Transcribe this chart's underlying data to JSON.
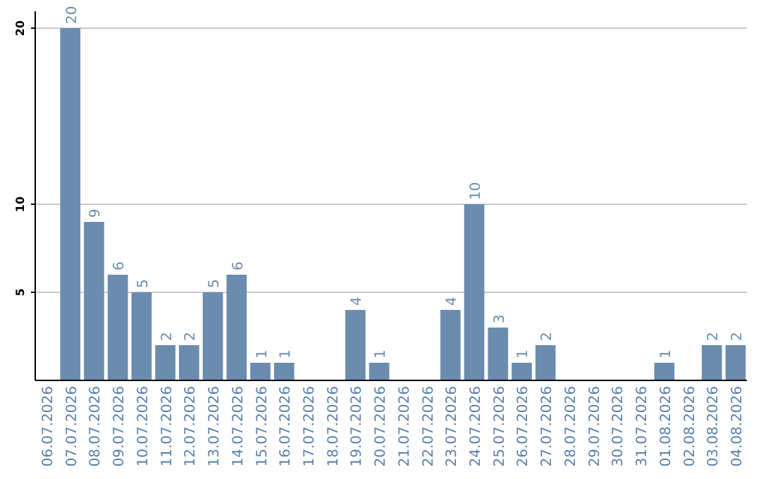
{
  "chart_data": {
    "type": "bar",
    "categories": [
      "06.07.2026",
      "07.07.2026",
      "08.07.2026",
      "09.07.2026",
      "10.07.2026",
      "11.07.2026",
      "12.07.2026",
      "13.07.2026",
      "14.07.2026",
      "15.07.2026",
      "16.07.2026",
      "17.07.2026",
      "18.07.2026",
      "19.07.2026",
      "20.07.2026",
      "21.07.2026",
      "22.07.2026",
      "23.07.2026",
      "24.07.2026",
      "25.07.2026",
      "26.07.2026",
      "27.07.2026",
      "28.07.2026",
      "29.07.2026",
      "30.07.2026",
      "31.07.2026",
      "01.08.2026",
      "02.08.2026",
      "03.08.2026",
      "04.08.2026"
    ],
    "values": [
      0,
      20,
      9,
      6,
      5,
      2,
      2,
      5,
      6,
      1,
      1,
      0,
      0,
      4,
      1,
      0,
      0,
      4,
      10,
      3,
      1,
      2,
      0,
      0,
      0,
      0,
      1,
      0,
      2,
      2
    ],
    "value_labels": [
      null,
      "20",
      "9",
      "6",
      "5",
      "2",
      "2",
      "5",
      "6",
      "1",
      "1",
      null,
      null,
      "4",
      "1",
      null,
      null,
      "4",
      "10",
      "3",
      "1",
      "2",
      null,
      null,
      null,
      null,
      "1",
      null,
      "2",
      "2"
    ],
    "color": "#6b8cae",
    "ylim": [
      0,
      20
    ],
    "yticks": [
      5,
      10,
      20
    ],
    "grid": "y"
  }
}
